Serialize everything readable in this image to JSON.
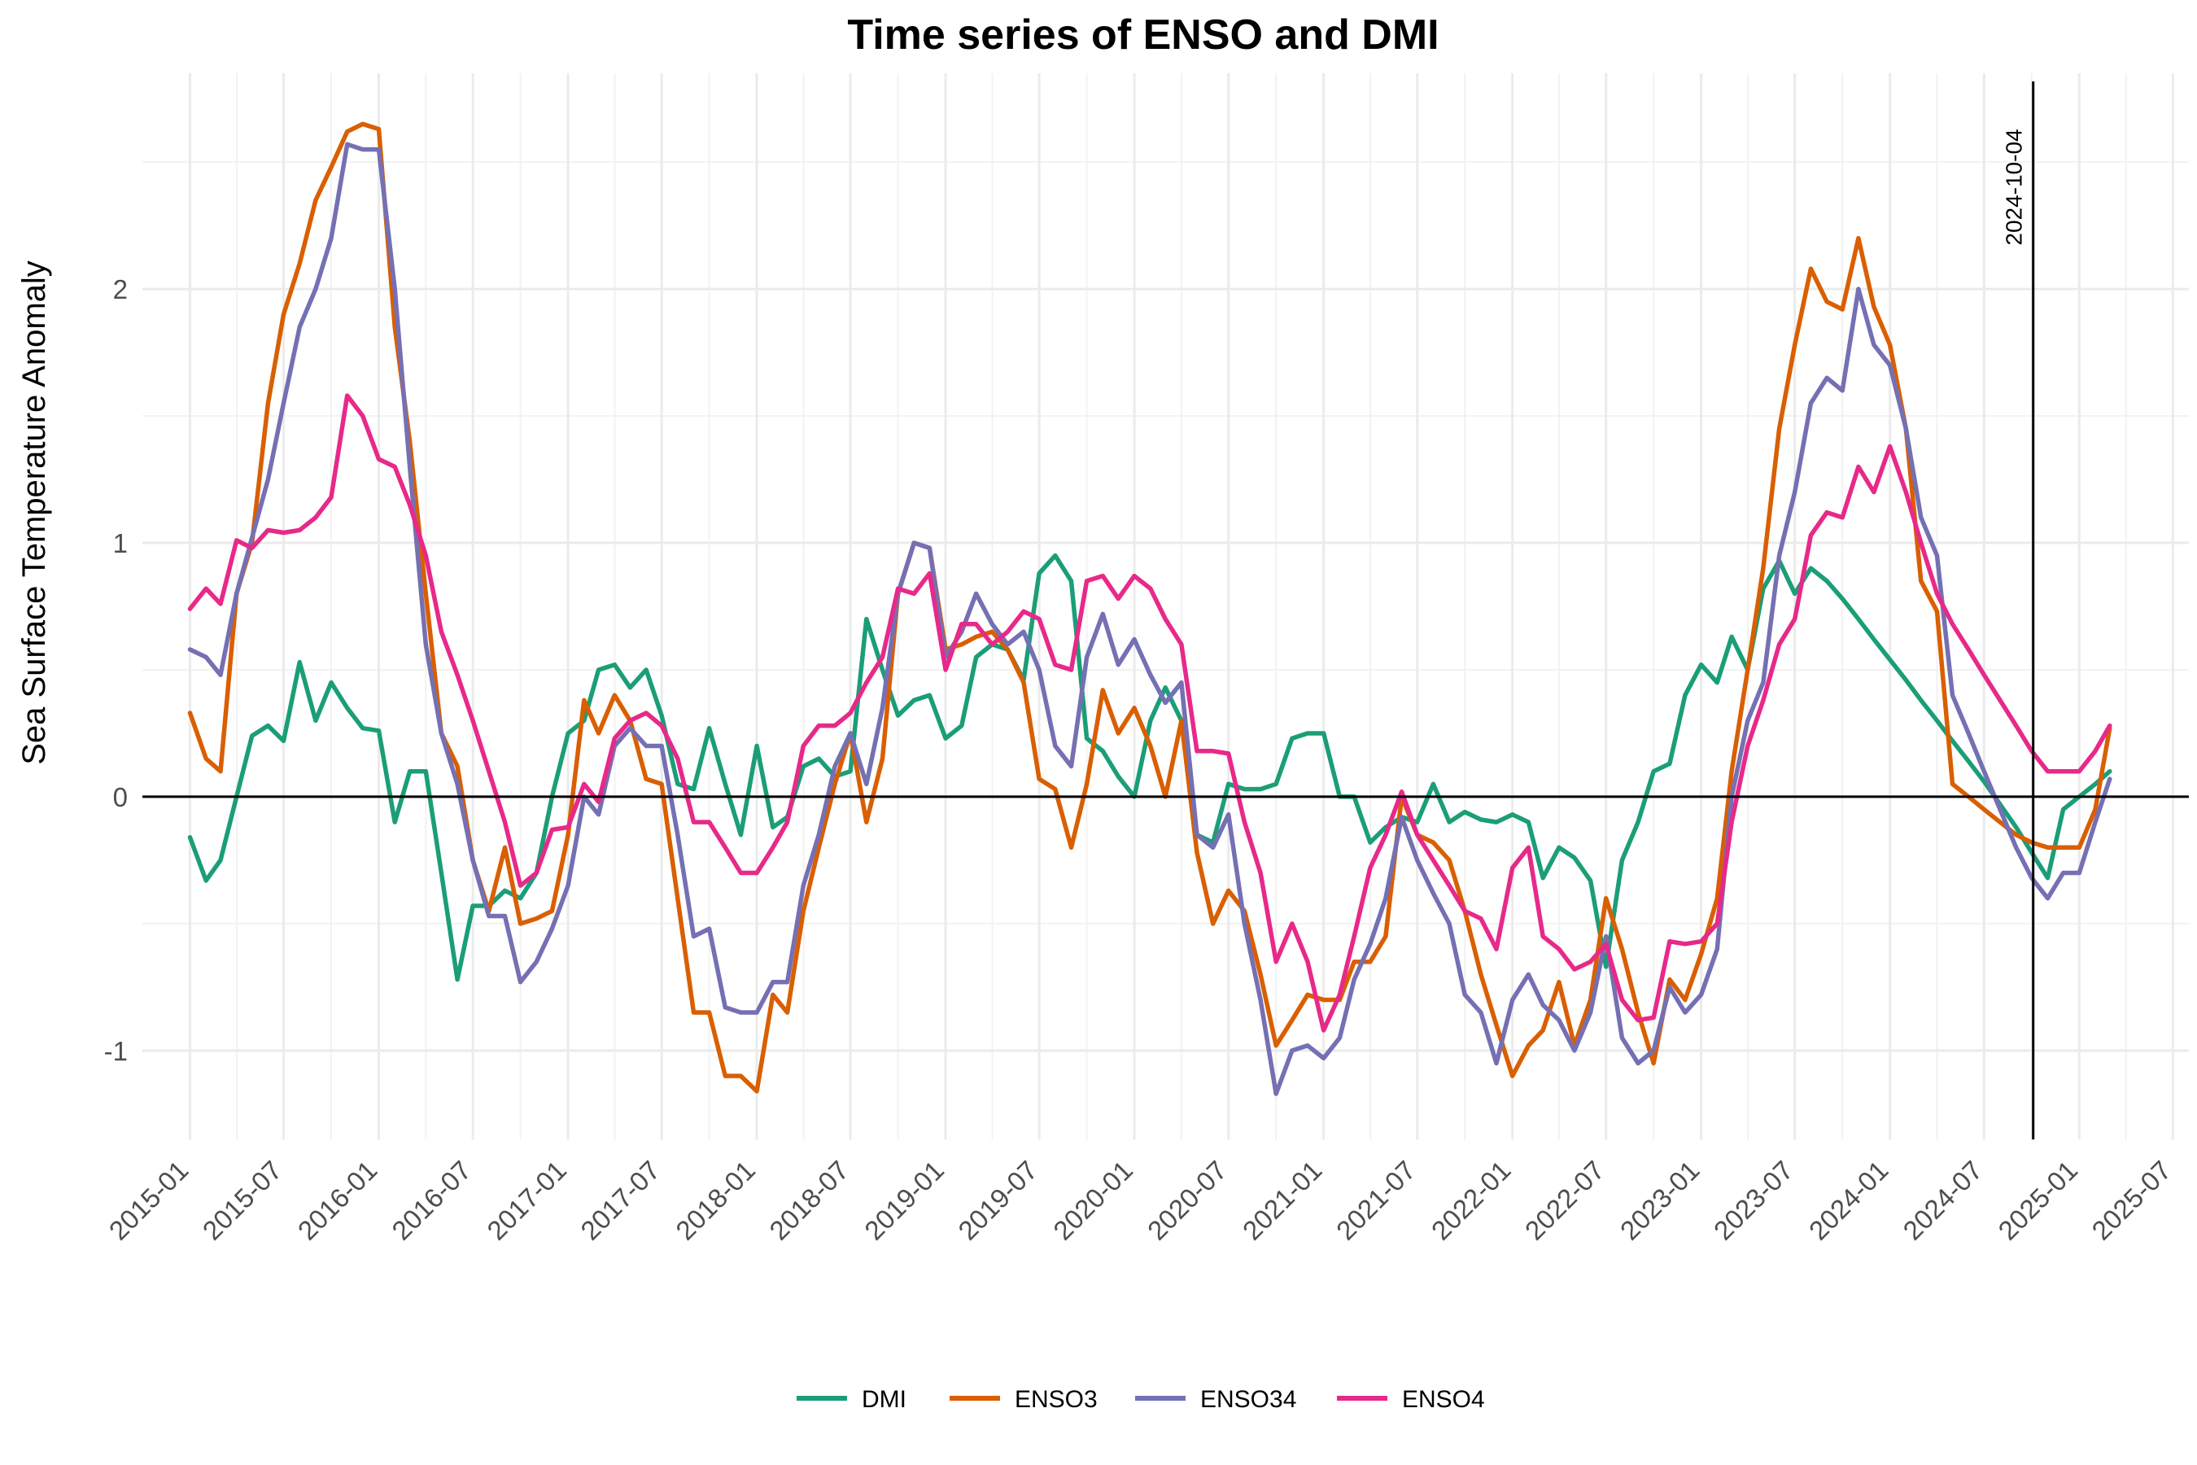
{
  "chart_data": {
    "type": "line",
    "title": "Time series of ENSO and DMI",
    "xlabel": "",
    "ylabel": "Sea Surface Temperature Anomaly",
    "xlim": [
      "2014-10-01",
      "2025-08-01"
    ],
    "ylim": [
      -1.35,
      2.85
    ],
    "x_ticks": [
      "2015-01",
      "2015-07",
      "2016-01",
      "2016-07",
      "2017-01",
      "2017-07",
      "2018-01",
      "2018-07",
      "2019-01",
      "2019-07",
      "2020-01",
      "2020-07",
      "2021-01",
      "2021-07",
      "2022-01",
      "2022-07",
      "2023-01",
      "2023-07",
      "2024-01",
      "2024-07",
      "2025-01",
      "2025-07"
    ],
    "y_ticks": [
      -1,
      0,
      1,
      2
    ],
    "y_tick_labels": [
      "-1",
      "0",
      "1",
      "2"
    ],
    "grid": true,
    "legend_position": "bottom",
    "reference_hline": 0,
    "reference_vline": {
      "date": "2024-10-04",
      "label": "2024-10-04"
    },
    "x": [
      "2015-01",
      "2015-02",
      "2015-03",
      "2015-04",
      "2015-05",
      "2015-06",
      "2015-07",
      "2015-08",
      "2015-09",
      "2015-10",
      "2015-11",
      "2015-12",
      "2016-01",
      "2016-02",
      "2016-03",
      "2016-04",
      "2016-05",
      "2016-06",
      "2016-07",
      "2016-08",
      "2016-09",
      "2016-10",
      "2016-11",
      "2016-12",
      "2017-01",
      "2017-02",
      "2017-03",
      "2017-04",
      "2017-05",
      "2017-06",
      "2017-07",
      "2017-08",
      "2017-09",
      "2017-10",
      "2017-11",
      "2017-12",
      "2018-01",
      "2018-02",
      "2018-03",
      "2018-04",
      "2018-05",
      "2018-06",
      "2018-07",
      "2018-08",
      "2018-09",
      "2018-10",
      "2018-11",
      "2018-12",
      "2019-01",
      "2019-02",
      "2019-03",
      "2019-04",
      "2019-05",
      "2019-06",
      "2019-07",
      "2019-08",
      "2019-09",
      "2019-10",
      "2019-11",
      "2019-12",
      "2020-01",
      "2020-02",
      "2020-03",
      "2020-04",
      "2020-05",
      "2020-06",
      "2020-07",
      "2020-08",
      "2020-09",
      "2020-10",
      "2020-11",
      "2020-12",
      "2021-01",
      "2021-02",
      "2021-03",
      "2021-04",
      "2021-05",
      "2021-06",
      "2021-07",
      "2021-08",
      "2021-09",
      "2021-10",
      "2021-11",
      "2021-12",
      "2022-01",
      "2022-02",
      "2022-03",
      "2022-04",
      "2022-05",
      "2022-06",
      "2022-07",
      "2022-08",
      "2022-09",
      "2022-10",
      "2022-11",
      "2022-12",
      "2023-01",
      "2023-02",
      "2023-03",
      "2023-04",
      "2023-05",
      "2023-06",
      "2023-07",
      "2023-08",
      "2023-09",
      "2023-10",
      "2023-11",
      "2023-12",
      "2024-01",
      "2024-02",
      "2024-03",
      "2024-04",
      "2024-05",
      "2024-06",
      "2024-07",
      "2024-08",
      "2024-09",
      "2024-10",
      "2024-11",
      "2024-12",
      "2025-01",
      "2025-02",
      "2025-03"
    ],
    "series": [
      {
        "name": "DMI",
        "color": "#1b9e77",
        "values": [
          -0.16,
          -0.33,
          -0.25,
          0.0,
          0.24,
          0.28,
          0.22,
          0.53,
          0.3,
          0.45,
          0.35,
          0.27,
          0.26,
          -0.1,
          0.1,
          0.1,
          -0.3,
          -0.72,
          -0.43,
          -0.43,
          -0.37,
          -0.4,
          -0.3,
          0.0,
          0.25,
          0.3,
          0.5,
          0.52,
          0.43,
          0.5,
          0.32,
          0.05,
          0.03,
          0.27,
          0.05,
          -0.15,
          0.2,
          -0.12,
          -0.08,
          0.12,
          0.15,
          0.08,
          0.1,
          0.7,
          0.5,
          0.32,
          0.38,
          0.4,
          0.23,
          0.28,
          0.55,
          0.6,
          0.58,
          0.46,
          0.88,
          0.95,
          0.85,
          0.23,
          0.18,
          0.08,
          0.0,
          0.3,
          0.43,
          0.3,
          -0.15,
          -0.18,
          0.05,
          0.03,
          0.03,
          0.05,
          0.23,
          0.25,
          0.25,
          0.0,
          0.0,
          -0.18,
          -0.12,
          -0.08,
          -0.1,
          0.05,
          -0.1,
          -0.06,
          -0.09,
          -0.1,
          -0.07,
          -0.1,
          -0.32,
          -0.2,
          -0.24,
          -0.33,
          -0.67,
          -0.25,
          -0.1,
          0.1,
          0.13,
          0.4,
          0.52,
          0.45,
          0.63,
          0.5,
          0.82,
          0.93,
          0.8,
          0.9,
          0.85,
          0.78,
          0.7,
          0.62,
          0.54,
          0.46,
          0.38,
          0.3,
          0.22,
          0.14,
          0.06,
          -0.03,
          -0.12,
          -0.22,
          -0.32,
          -0.05,
          0.0,
          0.05,
          0.1
        ]
      },
      {
        "name": "ENSO3",
        "color": "#d95f02",
        "values": [
          0.33,
          0.15,
          0.1,
          0.8,
          1.0,
          1.55,
          1.9,
          2.1,
          2.35,
          2.48,
          2.62,
          2.65,
          2.63,
          1.85,
          1.4,
          0.8,
          0.25,
          0.12,
          -0.25,
          -0.45,
          -0.2,
          -0.5,
          -0.48,
          -0.45,
          -0.15,
          0.38,
          0.25,
          0.4,
          0.3,
          0.07,
          0.05,
          -0.4,
          -0.85,
          -0.85,
          -1.1,
          -1.1,
          -1.16,
          -0.78,
          -0.85,
          -0.45,
          -0.2,
          0.05,
          0.25,
          -0.1,
          0.15,
          0.8,
          1.0,
          0.98,
          0.58,
          0.6,
          0.63,
          0.65,
          0.58,
          0.45,
          0.07,
          0.03,
          -0.2,
          0.05,
          0.42,
          0.25,
          0.35,
          0.2,
          0.0,
          0.3,
          -0.22,
          -0.5,
          -0.37,
          -0.45,
          -0.7,
          -0.98,
          -0.88,
          -0.78,
          -0.8,
          -0.8,
          -0.65,
          -0.65,
          -0.55,
          0.0,
          -0.15,
          -0.18,
          -0.25,
          -0.45,
          -0.7,
          -0.9,
          -1.1,
          -0.98,
          -0.92,
          -0.73,
          -0.98,
          -0.8,
          -0.4,
          -0.6,
          -0.85,
          -1.05,
          -0.72,
          -0.8,
          -0.62,
          -0.4,
          0.1,
          0.5,
          0.9,
          1.45,
          1.78,
          2.08,
          1.95,
          1.92,
          2.2,
          1.93,
          1.78,
          1.45,
          0.85,
          0.73,
          0.05,
          0.0,
          -0.05,
          -0.1,
          -0.15,
          -0.18,
          -0.2,
          -0.2,
          -0.2,
          -0.05,
          0.27
        ]
      },
      {
        "name": "ENSO34",
        "color": "#7570b3",
        "values": [
          0.58,
          0.55,
          0.48,
          0.8,
          1.02,
          1.25,
          1.55,
          1.85,
          2.0,
          2.2,
          2.57,
          2.55,
          2.55,
          2.0,
          1.3,
          0.6,
          0.25,
          0.05,
          -0.25,
          -0.47,
          -0.47,
          -0.73,
          -0.65,
          -0.52,
          -0.35,
          0.0,
          -0.07,
          0.2,
          0.27,
          0.2,
          0.2,
          -0.15,
          -0.55,
          -0.52,
          -0.83,
          -0.85,
          -0.85,
          -0.73,
          -0.73,
          -0.35,
          -0.15,
          0.12,
          0.25,
          0.05,
          0.35,
          0.8,
          1.0,
          0.98,
          0.55,
          0.65,
          0.8,
          0.68,
          0.6,
          0.65,
          0.5,
          0.2,
          0.12,
          0.55,
          0.72,
          0.52,
          0.62,
          0.48,
          0.37,
          0.45,
          -0.15,
          -0.2,
          -0.07,
          -0.5,
          -0.8,
          -1.17,
          -1.0,
          -0.98,
          -1.03,
          -0.95,
          -0.72,
          -0.58,
          -0.4,
          -0.08,
          -0.25,
          -0.38,
          -0.5,
          -0.78,
          -0.85,
          -1.05,
          -0.8,
          -0.7,
          -0.82,
          -0.88,
          -1.0,
          -0.85,
          -0.55,
          -0.95,
          -1.05,
          -1.0,
          -0.75,
          -0.85,
          -0.78,
          -0.6,
          0.0,
          0.3,
          0.45,
          0.95,
          1.2,
          1.55,
          1.65,
          1.6,
          2.0,
          1.78,
          1.7,
          1.45,
          1.1,
          0.95,
          0.4,
          0.25,
          0.1,
          -0.05,
          -0.2,
          -0.32,
          -0.4,
          -0.3,
          -0.3,
          -0.1,
          0.07
        ]
      },
      {
        "name": "ENSO4",
        "color": "#e7298a",
        "values": [
          0.74,
          0.82,
          0.76,
          1.01,
          0.98,
          1.05,
          1.04,
          1.05,
          1.1,
          1.18,
          1.58,
          1.5,
          1.33,
          1.3,
          1.15,
          0.95,
          0.65,
          0.48,
          0.3,
          0.1,
          -0.1,
          -0.35,
          -0.3,
          -0.13,
          -0.12,
          0.05,
          -0.02,
          0.23,
          0.3,
          0.33,
          0.28,
          0.15,
          -0.1,
          -0.1,
          -0.2,
          -0.3,
          -0.3,
          -0.2,
          -0.1,
          0.2,
          0.28,
          0.28,
          0.33,
          0.45,
          0.55,
          0.82,
          0.8,
          0.88,
          0.5,
          0.68,
          0.68,
          0.6,
          0.65,
          0.73,
          0.7,
          0.52,
          0.5,
          0.85,
          0.87,
          0.78,
          0.87,
          0.82,
          0.7,
          0.6,
          0.18,
          0.18,
          0.17,
          -0.1,
          -0.3,
          -0.65,
          -0.5,
          -0.65,
          -0.92,
          -0.78,
          -0.55,
          -0.28,
          -0.15,
          0.02,
          -0.15,
          -0.25,
          -0.35,
          -0.45,
          -0.48,
          -0.6,
          -0.28,
          -0.2,
          -0.55,
          -0.6,
          -0.68,
          -0.65,
          -0.58,
          -0.8,
          -0.88,
          -0.87,
          -0.57,
          -0.58,
          -0.57,
          -0.5,
          -0.1,
          0.2,
          0.38,
          0.6,
          0.7,
          1.03,
          1.12,
          1.1,
          1.3,
          1.2,
          1.38,
          1.2,
          1.0,
          0.8,
          0.68,
          0.58,
          0.48,
          0.38,
          0.28,
          0.18,
          0.1,
          0.1,
          0.1,
          0.18,
          0.28
        ]
      }
    ]
  }
}
